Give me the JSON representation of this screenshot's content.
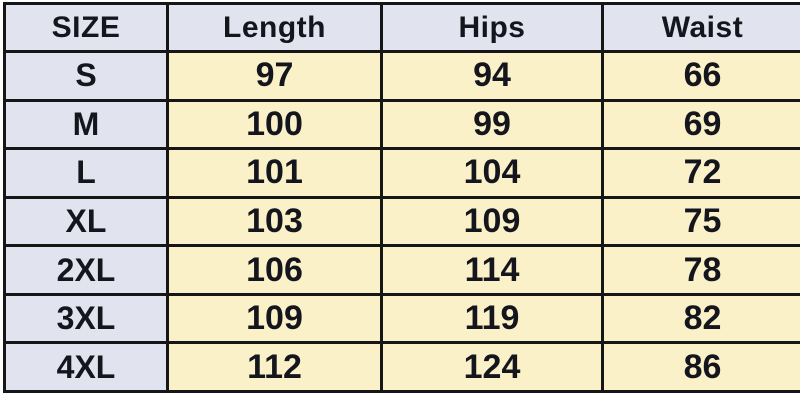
{
  "chart_data": {
    "type": "table",
    "columns": [
      "SIZE",
      "Length",
      "Hips",
      "Waist"
    ],
    "rows": [
      [
        "S",
        "97",
        "94",
        "66"
      ],
      [
        "M",
        "100",
        "99",
        "69"
      ],
      [
        "L",
        "101",
        "104",
        "72"
      ],
      [
        "XL",
        "103",
        "109",
        "75"
      ],
      [
        "2XL",
        "106",
        "114",
        "78"
      ],
      [
        "3XL",
        "109",
        "119",
        "82"
      ],
      [
        "4XL",
        "112",
        "124",
        "86"
      ]
    ]
  },
  "colors": {
    "header_bg": "#e1e3ee",
    "size_col_bg": "#e1e3ee",
    "data_bg": "#faf1c8",
    "border": "#161616",
    "text": "#15151e"
  }
}
